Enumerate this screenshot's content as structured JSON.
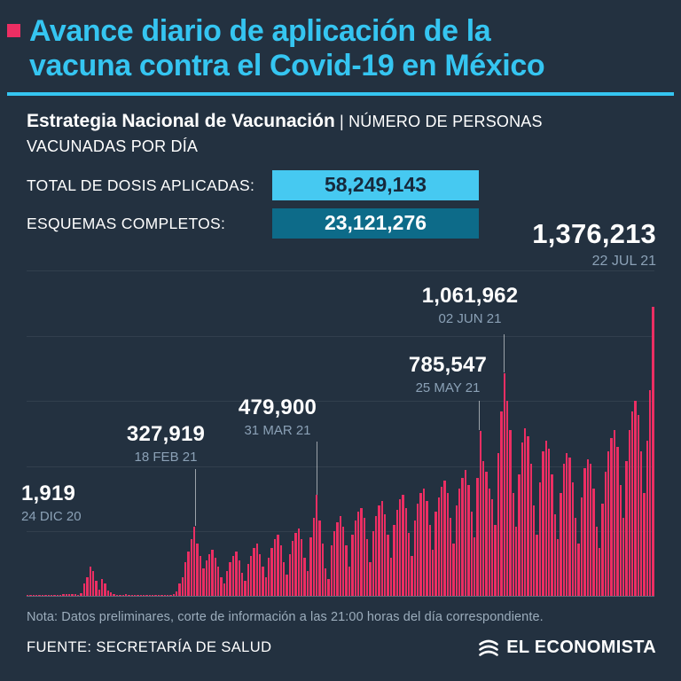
{
  "header": {
    "title_line1": "Avance diario de aplicación de la",
    "title_line2": "vacuna contra el Covid-19 en México",
    "subtitle_bold": "Estrategia Nacional de Vacunación",
    "subtitle_rest": "| NÚMERO DE PERSONAS VACUNADAS POR DÍA"
  },
  "stats": {
    "total_label": "TOTAL DE DOSIS APLICADAS:",
    "total_value": "58,249,143",
    "complete_label": "ESQUEMAS COMPLETOS:",
    "complete_value": "23,121,276"
  },
  "highlight": {
    "value": "1,376,213",
    "date": "22 JUL 21"
  },
  "annotations": [
    {
      "value": "1,919",
      "date": "24 DIC 20"
    },
    {
      "value": "327,919",
      "date": "18 FEB 21"
    },
    {
      "value": "479,900",
      "date": "31 MAR 21"
    },
    {
      "value": "785,547",
      "date": "25 MAY 21"
    },
    {
      "value": "1,061,962",
      "date": "02 JUN 21"
    }
  ],
  "footer": {
    "note": "Nota: Datos preliminares, corte de información a las 21:00 horas del día correspondiente.",
    "source": "FUENTE: SECRETARÍA DE SALUD",
    "brand": "EL ECONOMISTA"
  },
  "colors": {
    "background": "#233140",
    "accent_pink": "#ec2e63",
    "accent_cyan": "#35c5f1",
    "box_cyan": "#46c9f1",
    "box_teal": "#0d6b89",
    "date_gray": "#8ba1b6"
  },
  "chart_data": {
    "type": "bar",
    "title": "Avance diario de aplicación de la vacuna contra el Covid-19 en México",
    "ylabel": "Número de personas vacunadas por día",
    "x_start": "24 DIC 20",
    "x_end": "22 JUL 21",
    "ylim": [
      0,
      1550000
    ],
    "grid": true,
    "highlighted_points": [
      {
        "date": "24 DIC 20",
        "value": 1919
      },
      {
        "date": "18 FEB 21",
        "value": 327919
      },
      {
        "date": "31 MAR 21",
        "value": 479900
      },
      {
        "date": "25 MAY 21",
        "value": 785547
      },
      {
        "date": "02 JUN 21",
        "value": 1061962
      },
      {
        "date": "22 JUL 21",
        "value": 1376213
      }
    ],
    "values": [
      1919,
      2400,
      800,
      3200,
      4100,
      3600,
      2900,
      3300,
      1800,
      1200,
      1500,
      5200,
      7000,
      8200,
      7400,
      9000,
      6500,
      4000,
      12000,
      60000,
      90000,
      140000,
      120000,
      70000,
      30000,
      80000,
      60000,
      25000,
      15000,
      9000,
      5000,
      3000,
      6000,
      7000,
      5500,
      4500,
      4000,
      2500,
      3000,
      4000,
      3000,
      2500,
      2000,
      3500,
      3000,
      2600,
      4000,
      5000,
      6000,
      8000,
      20000,
      60000,
      90000,
      160000,
      210000,
      270000,
      327919,
      250000,
      190000,
      130000,
      170000,
      200000,
      220000,
      180000,
      140000,
      90000,
      60000,
      120000,
      160000,
      190000,
      210000,
      170000,
      110000,
      70000,
      150000,
      190000,
      230000,
      250000,
      200000,
      140000,
      90000,
      180000,
      230000,
      270000,
      290000,
      240000,
      160000,
      100000,
      200000,
      260000,
      300000,
      320000,
      270000,
      180000,
      120000,
      280000,
      370000,
      479900,
      360000,
      250000,
      130000,
      80000,
      240000,
      310000,
      350000,
      380000,
      330000,
      240000,
      140000,
      290000,
      360000,
      400000,
      420000,
      370000,
      270000,
      160000,
      310000,
      380000,
      430000,
      450000,
      390000,
      290000,
      180000,
      340000,
      410000,
      460000,
      480000,
      420000,
      300000,
      190000,
      360000,
      440000,
      490000,
      510000,
      450000,
      340000,
      220000,
      400000,
      470000,
      520000,
      550000,
      490000,
      370000,
      250000,
      430000,
      510000,
      560000,
      600000,
      530000,
      400000,
      280000,
      560000,
      785547,
      640000,
      590000,
      510000,
      460000,
      340000,
      680000,
      880000,
      1061962,
      930000,
      790000,
      490000,
      330000,
      580000,
      730000,
      800000,
      760000,
      630000,
      430000,
      290000,
      540000,
      690000,
      740000,
      700000,
      580000,
      390000,
      270000,
      490000,
      630000,
      680000,
      660000,
      540000,
      370000,
      250000,
      470000,
      610000,
      650000,
      630000,
      510000,
      330000,
      230000,
      440000,
      590000,
      690000,
      750000,
      790000,
      710000,
      530000,
      370000,
      640000,
      790000,
      880000,
      930000,
      860000,
      690000,
      490000,
      740000,
      980000,
      1376213
    ]
  }
}
